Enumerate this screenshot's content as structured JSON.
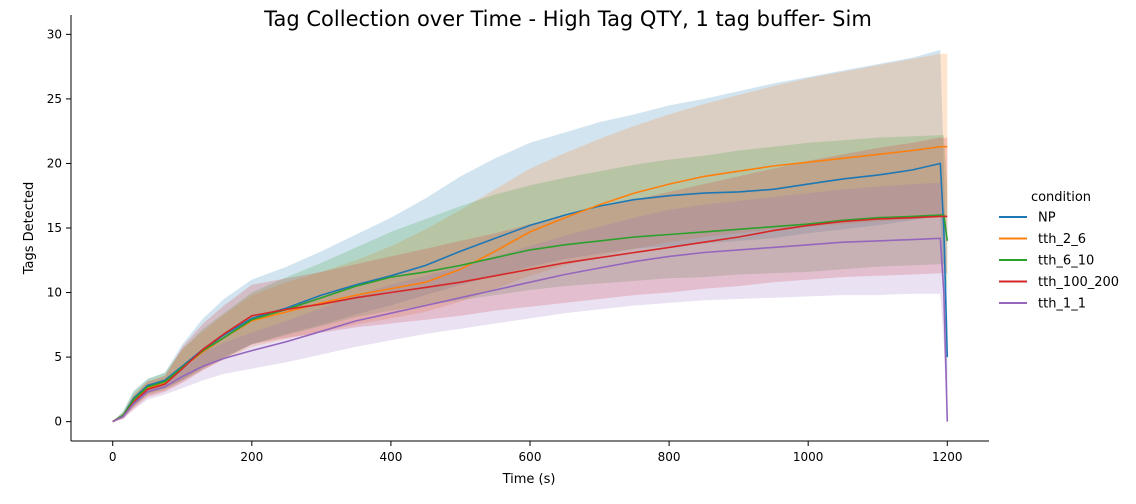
{
  "chart_data": {
    "type": "line",
    "title": "Tag Collection over Time - High Tag QTY, 1 tag buffer- Sim",
    "xlabel": "Time (s)",
    "ylabel": "Tags Detected",
    "xlim": [
      -60,
      1260
    ],
    "ylim": [
      -1.5,
      31.5
    ],
    "xticks": [
      0,
      200,
      400,
      600,
      800,
      1000,
      1200
    ],
    "yticks": [
      0,
      5,
      10,
      15,
      20,
      25,
      30
    ],
    "grid": false,
    "legend": {
      "title": "condition",
      "placement": "right"
    },
    "series": [
      {
        "name": "NP",
        "color": "#1f77b4",
        "x": [
          0,
          15,
          30,
          50,
          75,
          100,
          130,
          160,
          200,
          250,
          300,
          350,
          400,
          450,
          500,
          550,
          600,
          650,
          700,
          750,
          800,
          850,
          900,
          950,
          1000,
          1050,
          1100,
          1150,
          1190,
          1195,
          1200
        ],
        "y": [
          0,
          0.5,
          1.8,
          2.8,
          3.2,
          4.3,
          5.6,
          6.7,
          8.0,
          8.8,
          9.8,
          10.6,
          11.3,
          12.1,
          13.2,
          14.2,
          15.2,
          16.0,
          16.7,
          17.2,
          17.5,
          17.7,
          17.8,
          18.0,
          18.4,
          18.8,
          19.1,
          19.5,
          20.0,
          15.0,
          5.0
        ],
        "lower": [
          0,
          0.3,
          1.2,
          2.2,
          2.6,
          3.2,
          4.2,
          5.0,
          6.0,
          6.8,
          7.5,
          8.3,
          9.0,
          9.8,
          10.6,
          11.3,
          12.0,
          12.6,
          13.0,
          13.4,
          13.6,
          13.8,
          14.0,
          14.2,
          14.6,
          14.9,
          15.2,
          15.6,
          16.0,
          10.0,
          2.0
        ],
        "upper": [
          0,
          0.8,
          2.4,
          3.3,
          3.8,
          6.0,
          8.0,
          9.5,
          11.0,
          12.0,
          13.2,
          14.5,
          15.8,
          17.3,
          19.0,
          20.4,
          21.6,
          22.4,
          23.2,
          23.8,
          24.5,
          25.0,
          25.6,
          26.2,
          26.7,
          27.2,
          27.7,
          28.2,
          28.8,
          20.0,
          8.0
        ]
      },
      {
        "name": "tth_2_6",
        "color": "#ff7f0e",
        "x": [
          0,
          15,
          30,
          50,
          75,
          100,
          130,
          160,
          200,
          250,
          300,
          350,
          400,
          450,
          500,
          550,
          600,
          650,
          700,
          750,
          800,
          850,
          900,
          950,
          1000,
          1050,
          1100,
          1150,
          1190,
          1195,
          1200
        ],
        "y": [
          0,
          0.5,
          1.6,
          2.6,
          3.0,
          4.2,
          5.4,
          6.5,
          7.8,
          8.5,
          9.2,
          9.8,
          10.3,
          10.8,
          11.8,
          13.2,
          14.7,
          15.8,
          16.8,
          17.7,
          18.4,
          19.0,
          19.4,
          19.8,
          20.1,
          20.4,
          20.7,
          21.0,
          21.3,
          21.3,
          21.3
        ],
        "lower": [
          0,
          0.3,
          1.1,
          2.0,
          2.4,
          3.1,
          4.0,
          4.8,
          5.8,
          6.4,
          7.0,
          7.5,
          8.0,
          8.5,
          9.3,
          10.3,
          11.3,
          12.1,
          12.8,
          13.4,
          13.9,
          14.3,
          14.6,
          14.9,
          15.1,
          15.3,
          15.5,
          15.7,
          15.9,
          15.9,
          15.9
        ],
        "upper": [
          0,
          0.7,
          2.1,
          3.1,
          3.6,
          5.6,
          7.0,
          8.3,
          9.8,
          10.8,
          11.6,
          12.5,
          13.6,
          14.9,
          16.4,
          18.0,
          19.6,
          20.8,
          21.9,
          22.9,
          23.8,
          24.6,
          25.3,
          26.0,
          26.6,
          27.1,
          27.6,
          28.1,
          28.5,
          28.5,
          28.5
        ]
      },
      {
        "name": "tth_6_10",
        "color": "#2ca02c",
        "x": [
          0,
          15,
          30,
          50,
          75,
          100,
          130,
          160,
          200,
          250,
          300,
          350,
          400,
          450,
          500,
          550,
          600,
          650,
          700,
          750,
          800,
          850,
          900,
          950,
          1000,
          1050,
          1100,
          1150,
          1190,
          1195,
          1200
        ],
        "y": [
          0,
          0.5,
          1.7,
          2.7,
          3.1,
          4.2,
          5.5,
          6.5,
          7.9,
          8.7,
          9.6,
          10.5,
          11.2,
          11.6,
          12.1,
          12.7,
          13.3,
          13.7,
          14.0,
          14.3,
          14.5,
          14.7,
          14.9,
          15.1,
          15.3,
          15.6,
          15.8,
          15.9,
          16.0,
          16.0,
          14.0
        ],
        "lower": [
          0,
          0.3,
          1.2,
          2.1,
          2.5,
          3.2,
          4.1,
          4.9,
          6.0,
          6.7,
          7.4,
          8.1,
          8.6,
          9.0,
          9.4,
          9.8,
          10.2,
          10.5,
          10.7,
          10.9,
          11.1,
          11.2,
          11.4,
          11.5,
          11.6,
          11.8,
          12.0,
          12.1,
          12.2,
          12.2,
          10.0
        ],
        "upper": [
          0,
          0.8,
          2.3,
          3.3,
          3.8,
          5.6,
          7.2,
          8.4,
          10.0,
          11.2,
          12.3,
          13.5,
          14.7,
          15.7,
          16.7,
          17.6,
          18.3,
          18.9,
          19.4,
          19.9,
          20.3,
          20.6,
          21.0,
          21.3,
          21.6,
          21.8,
          22.0,
          22.1,
          22.2,
          22.2,
          18.0
        ]
      },
      {
        "name": "tth_100_200",
        "color": "#d62728",
        "x": [
          0,
          15,
          30,
          50,
          75,
          100,
          130,
          160,
          200,
          250,
          300,
          350,
          400,
          450,
          500,
          550,
          600,
          650,
          700,
          750,
          800,
          850,
          900,
          950,
          1000,
          1050,
          1100,
          1150,
          1190,
          1195,
          1200
        ],
        "y": [
          0,
          0.4,
          1.5,
          2.5,
          2.9,
          4.1,
          5.6,
          6.8,
          8.2,
          8.7,
          9.1,
          9.6,
          10.0,
          10.4,
          10.8,
          11.3,
          11.8,
          12.3,
          12.7,
          13.1,
          13.5,
          13.9,
          14.3,
          14.8,
          15.2,
          15.5,
          15.7,
          15.8,
          15.9,
          15.9,
          15.9
        ],
        "lower": [
          0,
          0.2,
          1.0,
          1.9,
          2.3,
          3.0,
          4.0,
          4.9,
          6.0,
          6.5,
          6.9,
          7.3,
          7.6,
          7.9,
          8.2,
          8.6,
          8.9,
          9.2,
          9.5,
          9.8,
          10.0,
          10.3,
          10.5,
          10.8,
          11.0,
          11.2,
          11.3,
          11.4,
          11.5,
          11.5,
          11.5
        ],
        "upper": [
          0,
          0.6,
          2.0,
          3.1,
          3.5,
          5.8,
          7.6,
          9.0,
          10.6,
          11.1,
          11.6,
          12.2,
          12.8,
          13.4,
          14.0,
          14.6,
          15.3,
          15.9,
          16.6,
          17.2,
          17.8,
          18.4,
          19.0,
          19.6,
          20.2,
          20.7,
          21.2,
          21.6,
          22.0,
          22.0,
          22.0
        ]
      },
      {
        "name": "tth_1_1",
        "color": "#9467bd",
        "x": [
          0,
          15,
          30,
          50,
          75,
          100,
          130,
          160,
          200,
          250,
          300,
          350,
          400,
          450,
          500,
          550,
          600,
          650,
          700,
          750,
          800,
          850,
          900,
          950,
          1000,
          1050,
          1100,
          1150,
          1190,
          1195,
          1200
        ],
        "y": [
          0,
          0.4,
          1.4,
          2.3,
          2.7,
          3.5,
          4.3,
          4.9,
          5.5,
          6.2,
          7.0,
          7.8,
          8.4,
          9.0,
          9.6,
          10.2,
          10.8,
          11.4,
          11.9,
          12.4,
          12.8,
          13.1,
          13.3,
          13.5,
          13.7,
          13.9,
          14.0,
          14.1,
          14.2,
          10.0,
          0
        ],
        "lower": [
          0,
          0.2,
          0.9,
          1.7,
          2.1,
          2.6,
          3.2,
          3.7,
          4.1,
          4.6,
          5.2,
          5.8,
          6.3,
          6.8,
          7.2,
          7.6,
          8.0,
          8.4,
          8.7,
          9.0,
          9.2,
          9.4,
          9.5,
          9.6,
          9.7,
          9.8,
          9.8,
          9.9,
          9.9,
          6.0,
          0
        ],
        "upper": [
          0,
          0.6,
          1.9,
          2.8,
          3.3,
          4.4,
          5.4,
          6.1,
          6.9,
          7.8,
          8.8,
          9.8,
          10.6,
          11.3,
          12.0,
          12.8,
          13.6,
          14.4,
          15.1,
          15.8,
          16.4,
          16.8,
          17.1,
          17.4,
          17.7,
          18.0,
          18.2,
          18.4,
          18.5,
          14.0,
          4.0
        ]
      }
    ]
  }
}
